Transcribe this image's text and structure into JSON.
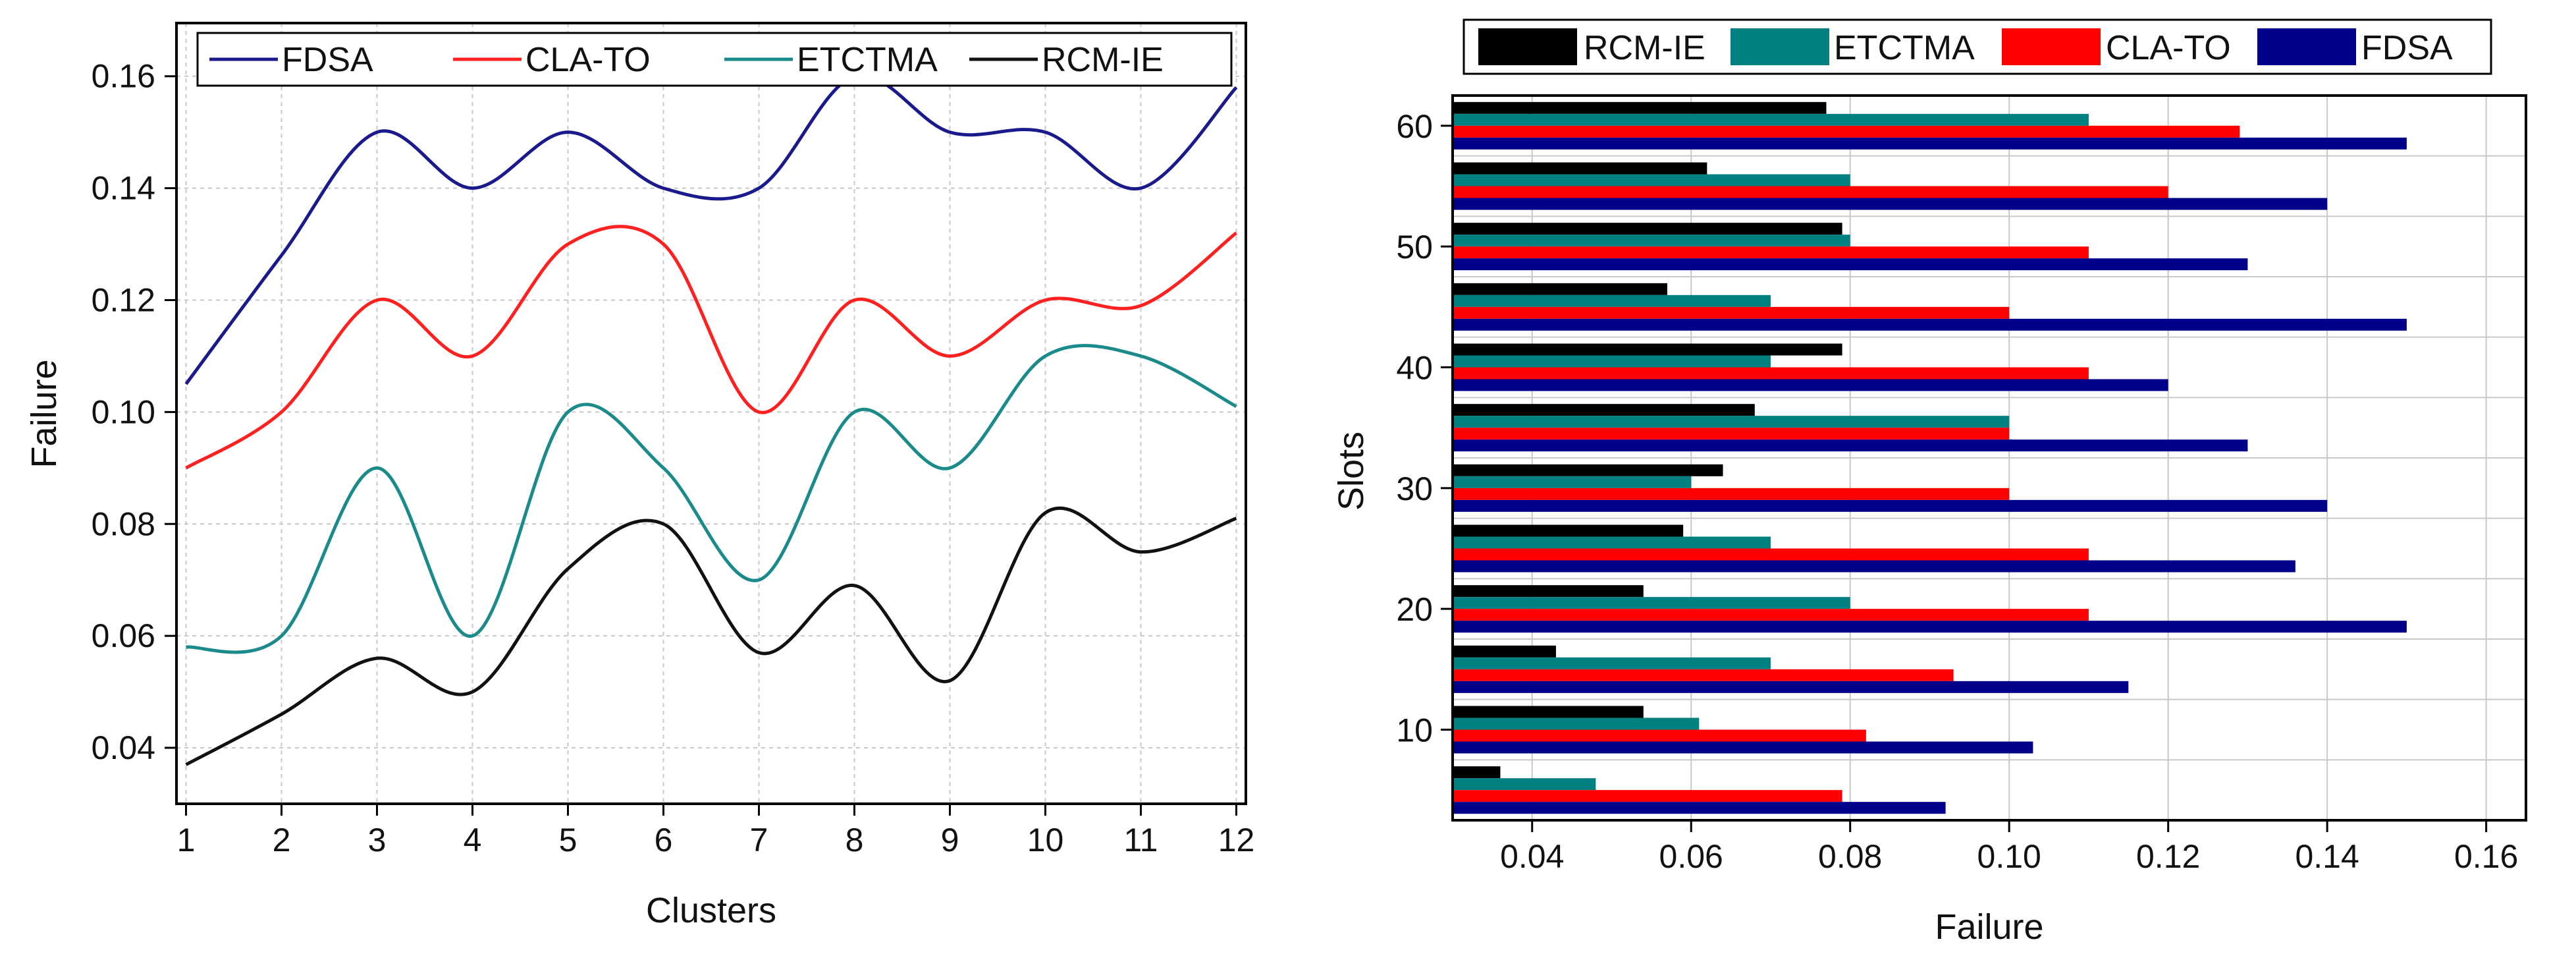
{
  "charts": [
    {
      "chart_data": {
        "type": "line",
        "xlabel": "Clusters",
        "ylabel": "Failure",
        "x": [
          1,
          2,
          3,
          4,
          5,
          6,
          7,
          8,
          9,
          10,
          11,
          12
        ],
        "xlim": [
          0.9,
          12.1
        ],
        "ylim": [
          0.03,
          0.1695
        ],
        "xticks": [
          1,
          2,
          3,
          4,
          5,
          6,
          7,
          8,
          9,
          10,
          11,
          12
        ],
        "yticks": [
          "0.04",
          "0.06",
          "0.08",
          "0.10",
          "0.12",
          "0.14",
          "0.16"
        ],
        "grid": true,
        "legend_position": "top",
        "series": [
          {
            "name": "FDSA",
            "color": "#1a1a8c",
            "values": [
              0.105,
              0.128,
              0.15,
              0.14,
              0.15,
              0.14,
              0.14,
              0.16,
              0.15,
              0.15,
              0.14,
              0.158
            ]
          },
          {
            "name": "CLA-TO",
            "color": "#ff2020",
            "values": [
              0.09,
              0.1,
              0.12,
              0.11,
              0.13,
              0.13,
              0.1,
              0.12,
              0.11,
              0.12,
              0.119,
              0.132
            ]
          },
          {
            "name": "ETCTMA",
            "color": "#1a8a8a",
            "values": [
              0.058,
              0.06,
              0.09,
              0.06,
              0.1,
              0.09,
              0.07,
              0.1,
              0.09,
              0.11,
              0.11,
              0.101
            ]
          },
          {
            "name": "RCM-IE",
            "color": "#111111",
            "values": [
              0.037,
              0.046,
              0.056,
              0.05,
              0.072,
              0.08,
              0.057,
              0.069,
              0.052,
              0.082,
              0.075,
              0.081
            ]
          }
        ]
      }
    },
    {
      "chart_data": {
        "type": "bar",
        "orientation": "horizontal",
        "xlabel": "Failure",
        "ylabel": "Slots",
        "categories": [
          5,
          10,
          15,
          20,
          25,
          30,
          35,
          40,
          45,
          50,
          55,
          60
        ],
        "ytick_labels": [
          "10",
          "20",
          "30",
          "40",
          "50",
          "60"
        ],
        "ytick_values": [
          10,
          20,
          30,
          40,
          50,
          60
        ],
        "xlim": [
          0.03,
          0.165
        ],
        "xticks": [
          "0.04",
          "0.06",
          "0.08",
          "0.10",
          "0.12",
          "0.14",
          "0.16"
        ],
        "grid": true,
        "legend_position": "top",
        "series": [
          {
            "name": "RCM-IE",
            "color": "#000000",
            "values": [
              0.036,
              0.054,
              0.043,
              0.054,
              0.059,
              0.064,
              0.068,
              0.079,
              0.057,
              0.079,
              0.062,
              0.077
            ]
          },
          {
            "name": "ETCTMA",
            "color": "#008080",
            "values": [
              0.048,
              0.061,
              0.07,
              0.08,
              0.07,
              0.06,
              0.1,
              0.07,
              0.07,
              0.08,
              0.08,
              0.11
            ]
          },
          {
            "name": "CLA-TO",
            "color": "#ff0000",
            "values": [
              0.079,
              0.082,
              0.093,
              0.11,
              0.11,
              0.1,
              0.1,
              0.11,
              0.1,
              0.11,
              0.12,
              0.129
            ]
          },
          {
            "name": "FDSA",
            "color": "#00008b",
            "values": [
              0.092,
              0.103,
              0.115,
              0.15,
              0.136,
              0.14,
              0.13,
              0.12,
              0.15,
              0.13,
              0.14,
              0.15
            ]
          }
        ]
      }
    }
  ]
}
